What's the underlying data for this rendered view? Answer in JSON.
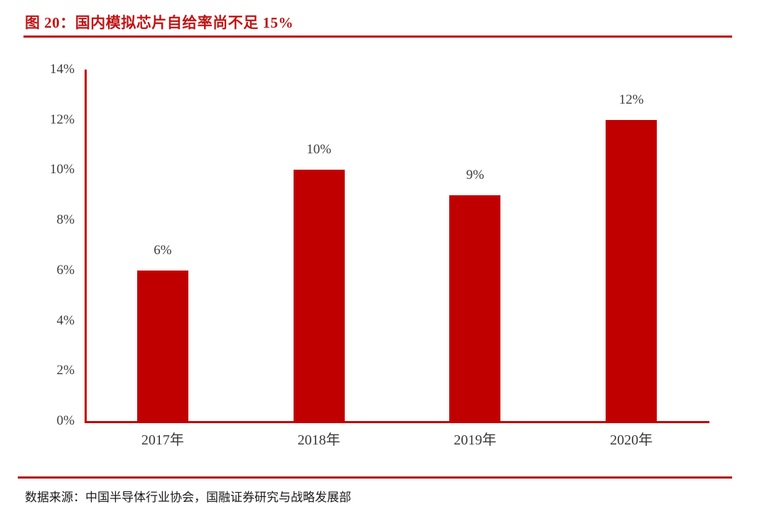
{
  "page": {
    "title": "图 20：国内模拟芯片自给率尚不足 15%",
    "source_note": "数据来源：中国半导体行业协会，国融证券研究与战略发展部"
  },
  "colors": {
    "bar": "#c00000",
    "axis": "#c00000",
    "title_text": "#c01414",
    "title_rule": "#c00000",
    "footer_rule": "#b00e0e",
    "tick_label_text": "#3d3d3d"
  },
  "chart_data": {
    "type": "bar",
    "title": "图 20：国内模拟芯片自给率尚不足 15%",
    "categories": [
      "2017年",
      "2018年",
      "2019年",
      "2020年"
    ],
    "values": [
      6,
      10,
      9,
      12
    ],
    "value_labels": [
      "6%",
      "10%",
      "9%",
      "12%"
    ],
    "xlabel": "",
    "ylabel": "",
    "ylim": [
      0,
      14
    ],
    "ytick_step": 2,
    "ytick_labels": [
      "0%",
      "2%",
      "4%",
      "6%",
      "8%",
      "10%",
      "12%",
      "14%"
    ],
    "grid": false,
    "legend": "none",
    "bar_color": "#c00000"
  }
}
